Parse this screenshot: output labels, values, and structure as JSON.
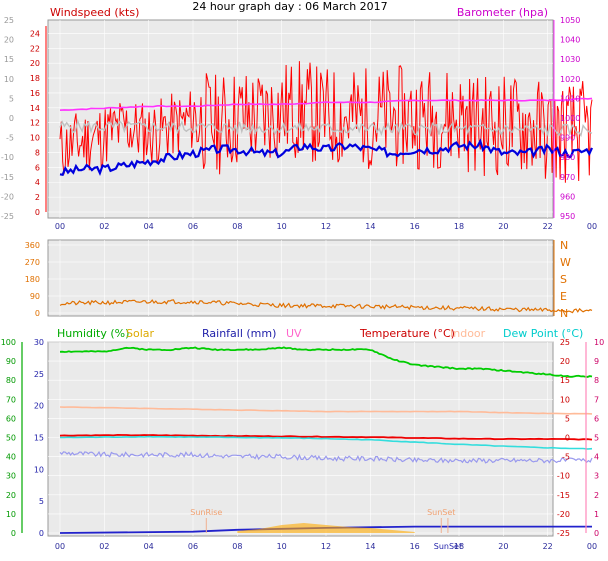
{
  "header": {
    "title": "24 hour graph day : 06 March 2017"
  },
  "colors": {
    "wind_speed": "#ff0000",
    "wind_avg": "#c0c0c0",
    "barometer": "#ff33ff",
    "temperature": "#ee0000",
    "humidity": "#00cc00",
    "dew_point": "#33dddd",
    "indoor": "#ffbb99",
    "rainfall": "#2222cc",
    "solar": "#ffaa00",
    "uv": "#ff77bb",
    "direction": "#e07000",
    "axis_text": "#2a2a9a",
    "background": "#eaeaea"
  },
  "chart_data": [
    {
      "type": "line",
      "title": "Wind & Barometer",
      "legend": {
        "left": "Windspeed (kts)",
        "right": "Barometer (hpa)"
      },
      "x_ticks": [
        "00",
        "02",
        "04",
        "06",
        "08",
        "10",
        "12",
        "14",
        "16",
        "18",
        "20",
        "22",
        "00"
      ],
      "y_outer_ticks": [
        "25",
        "20",
        "15",
        "10",
        "5",
        "0",
        "-5",
        "-10",
        "-15",
        "-20",
        "-25"
      ],
      "y_left_ticks": [
        "24",
        "22",
        "20",
        "18",
        "16",
        "14",
        "12",
        "10",
        "8",
        "6",
        "4",
        "2",
        "0"
      ],
      "y_right_ticks": [
        "1050",
        "1040",
        "1030",
        "1020",
        "1010",
        "1000",
        "990",
        "980",
        "970",
        "960",
        "950"
      ],
      "ylim_left": [
        0,
        25
      ],
      "ylim_right": [
        950,
        1050
      ],
      "series": [
        {
          "name": "Windspeed (kts)",
          "axis": "left",
          "x": [
            0,
            1,
            2,
            3,
            4,
            5,
            6,
            7,
            8,
            9,
            10,
            11,
            12,
            13,
            14,
            15,
            16,
            17,
            18,
            19,
            20,
            21,
            22,
            23,
            24
          ],
          "y": [
            8,
            9,
            10,
            11,
            10,
            11,
            12,
            11,
            12,
            12,
            13,
            13,
            12,
            12,
            12,
            12,
            12,
            12,
            12,
            11,
            11,
            11,
            10,
            10,
            10
          ]
        },
        {
          "name": "Barometer (hpa)",
          "axis": "right",
          "x": [
            0,
            2,
            4,
            6,
            8,
            10,
            12,
            14,
            16,
            18,
            20,
            22,
            24
          ],
          "y": [
            1004,
            1005,
            1006,
            1006,
            1007,
            1007,
            1008,
            1008,
            1009,
            1009,
            1009,
            1009,
            1010
          ]
        },
        {
          "name": "Wind direction trace",
          "axis": "outer",
          "x": [
            0,
            1,
            2,
            3,
            4,
            5,
            6,
            7,
            8,
            9,
            10,
            11,
            12,
            13,
            14,
            15,
            16,
            17,
            18,
            19,
            20,
            21,
            22,
            23,
            24
          ],
          "y": [
            -14,
            -13,
            -13,
            -12,
            -11,
            -10,
            -9,
            -8,
            -8,
            -9,
            -9,
            -7,
            -8,
            -7,
            -8,
            -9,
            -8,
            -8,
            -7,
            -7,
            -9,
            -9,
            -8,
            -9,
            -8
          ]
        }
      ]
    },
    {
      "type": "scatter",
      "title": "Wind Direction",
      "y_ticks": [
        "360",
        "270",
        "180",
        "90",
        "0"
      ],
      "y_compass": [
        "N",
        "W",
        "S",
        "E",
        "N"
      ],
      "ylim": [
        0,
        360
      ],
      "series": [
        {
          "name": "Direction",
          "x": [
            0,
            2,
            4,
            6,
            8,
            10,
            12,
            14,
            16,
            18,
            20,
            22,
            24
          ],
          "y": [
            50,
            55,
            60,
            60,
            50,
            40,
            38,
            35,
            30,
            25,
            20,
            15,
            10
          ]
        }
      ]
    },
    {
      "type": "line",
      "title": "Temperature, Humidity, Rain",
      "legend": [
        "Humidity (%)",
        "Solar",
        "Rainfall (mm)",
        "UV",
        "Temperature (°C)",
        "Indoor",
        "Dew Point (°C)"
      ],
      "y_hum_ticks": [
        "100",
        "90",
        "80",
        "70",
        "60",
        "50",
        "40",
        "30",
        "20",
        "10",
        "0"
      ],
      "y_rain_ticks": [
        "30",
        "25",
        "20",
        "15",
        "10",
        "5",
        "0"
      ],
      "y_temp_ticks": [
        "25",
        "20",
        "15",
        "10",
        "5",
        "0",
        "-5",
        "-10",
        "-15",
        "-20",
        "-25"
      ],
      "y_uv_ticks": [
        "10",
        "9",
        "8",
        "7",
        "6",
        "5",
        "4",
        "3",
        "2",
        "1",
        "0"
      ],
      "ylim_hum": [
        0,
        100
      ],
      "ylim_temp": [
        -25,
        25
      ],
      "annotations": [
        "SunRise",
        "SunSet",
        "SunSet"
      ],
      "series": [
        {
          "name": "Humidity (%)",
          "x": [
            0,
            1,
            2,
            3,
            4,
            5,
            6,
            7,
            8,
            9,
            10,
            11,
            12,
            13,
            14,
            15,
            16,
            17,
            18,
            19,
            20,
            21,
            22,
            23,
            24
          ],
          "y": [
            95,
            95,
            95,
            97,
            96,
            96,
            97,
            96,
            96,
            96,
            97,
            96,
            96,
            96,
            96,
            91,
            88,
            87,
            86,
            86,
            85,
            84,
            83,
            82,
            82
          ]
        },
        {
          "name": "Temperature (°C)",
          "x": [
            0,
            2,
            4,
            6,
            8,
            10,
            12,
            14,
            16,
            18,
            20,
            22,
            24
          ],
          "y": [
            0.5,
            0.6,
            0.6,
            0.5,
            0.4,
            0.3,
            0.2,
            0.1,
            -0.1,
            -0.3,
            -0.4,
            -0.4,
            -0.5
          ]
        },
        {
          "name": "Dew Point (°C)",
          "x": [
            0,
            2,
            4,
            6,
            8,
            10,
            12,
            14,
            16,
            18,
            20,
            22,
            24
          ],
          "y": [
            0.0,
            0.1,
            0.2,
            0.1,
            0.0,
            -0.1,
            -0.3,
            -0.6,
            -1.2,
            -1.8,
            -2.3,
            -2.7,
            -3.0
          ]
        },
        {
          "name": "Indoor",
          "x": [
            0,
            2,
            4,
            6,
            8,
            10,
            12,
            14,
            16,
            18,
            20,
            22,
            24
          ],
          "y": [
            8,
            7.8,
            7.6,
            7.4,
            7.2,
            7.0,
            6.8,
            6.8,
            6.8,
            6.8,
            6.5,
            6.3,
            6.2
          ]
        },
        {
          "name": "Humidity trace",
          "x": [
            0,
            2,
            4,
            6,
            8,
            10,
            12,
            14,
            16,
            18,
            20,
            22,
            24
          ],
          "y": [
            42,
            41,
            41,
            41,
            40,
            40,
            39,
            39,
            38,
            38,
            38,
            38,
            38
          ]
        },
        {
          "name": "Rainfall (mm)",
          "x": [
            0,
            6,
            8,
            12,
            16,
            20,
            24
          ],
          "y": [
            0,
            0.2,
            0.5,
            0.8,
            1.0,
            1.0,
            1.0
          ]
        },
        {
          "name": "Solar",
          "x": [
            8,
            9,
            10,
            11,
            12,
            13,
            14,
            15,
            16
          ],
          "y": [
            0.2,
            0.4,
            0.8,
            1.0,
            0.8,
            0.6,
            0.5,
            0.3,
            0.1
          ]
        }
      ]
    }
  ]
}
